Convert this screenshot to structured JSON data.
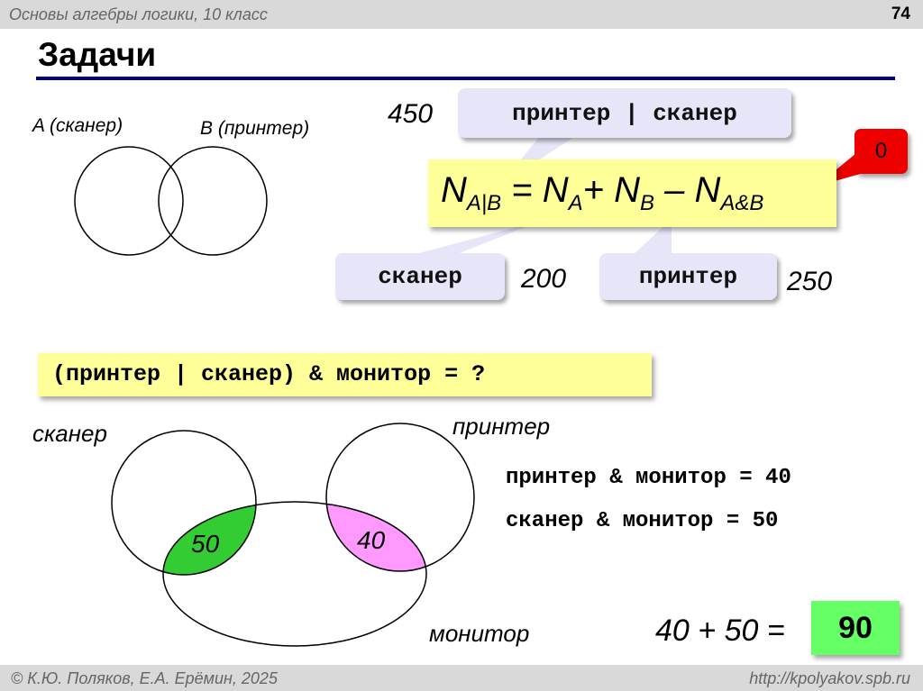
{
  "header": {
    "course": "Основы алгебры логики, 10 класс",
    "page_number": "74"
  },
  "title": "Задачи",
  "venn_top": {
    "label_a": "A (сканер)",
    "label_b": "B (принтер)"
  },
  "formula": {
    "n": "N",
    "sub_union": "A|B",
    "eq": " = ",
    "sub_a": "A",
    "plus": "+ ",
    "sub_b": "B",
    "minus": " – ",
    "sub_and": "A&B"
  },
  "callouts": {
    "union": {
      "label": "принтер | сканер",
      "value": "450"
    },
    "scanner": {
      "label": "сканер",
      "value": "200"
    },
    "printer": {
      "label": "принтер",
      "value": "250"
    },
    "intersection": {
      "value": "0"
    }
  },
  "question": "(принтер | сканер) & монитор = ?",
  "venn_bottom": {
    "scanner": "сканер",
    "printer": "принтер",
    "monitor": "монитор",
    "scanner_monitor": "50",
    "printer_monitor": "40"
  },
  "facts": [
    "принтер & монитор = 40",
    "сканер & монитор = 50"
  ],
  "answer": {
    "expression": "40 + 50 =",
    "result": "90"
  },
  "footer": {
    "authors": "© К.Ю. Поляков, Е.А. Ерёмин, 2025",
    "url": "http://kpolyakov.spb.ru"
  },
  "colors": {
    "title_rule": "#000080",
    "highlight": "#ffff99",
    "callout": "#e6e6f8",
    "red_badge": "#ee0000",
    "green_region": "#33cc33",
    "pink_region": "#ff99ff",
    "answer_box": "#66ff66"
  }
}
